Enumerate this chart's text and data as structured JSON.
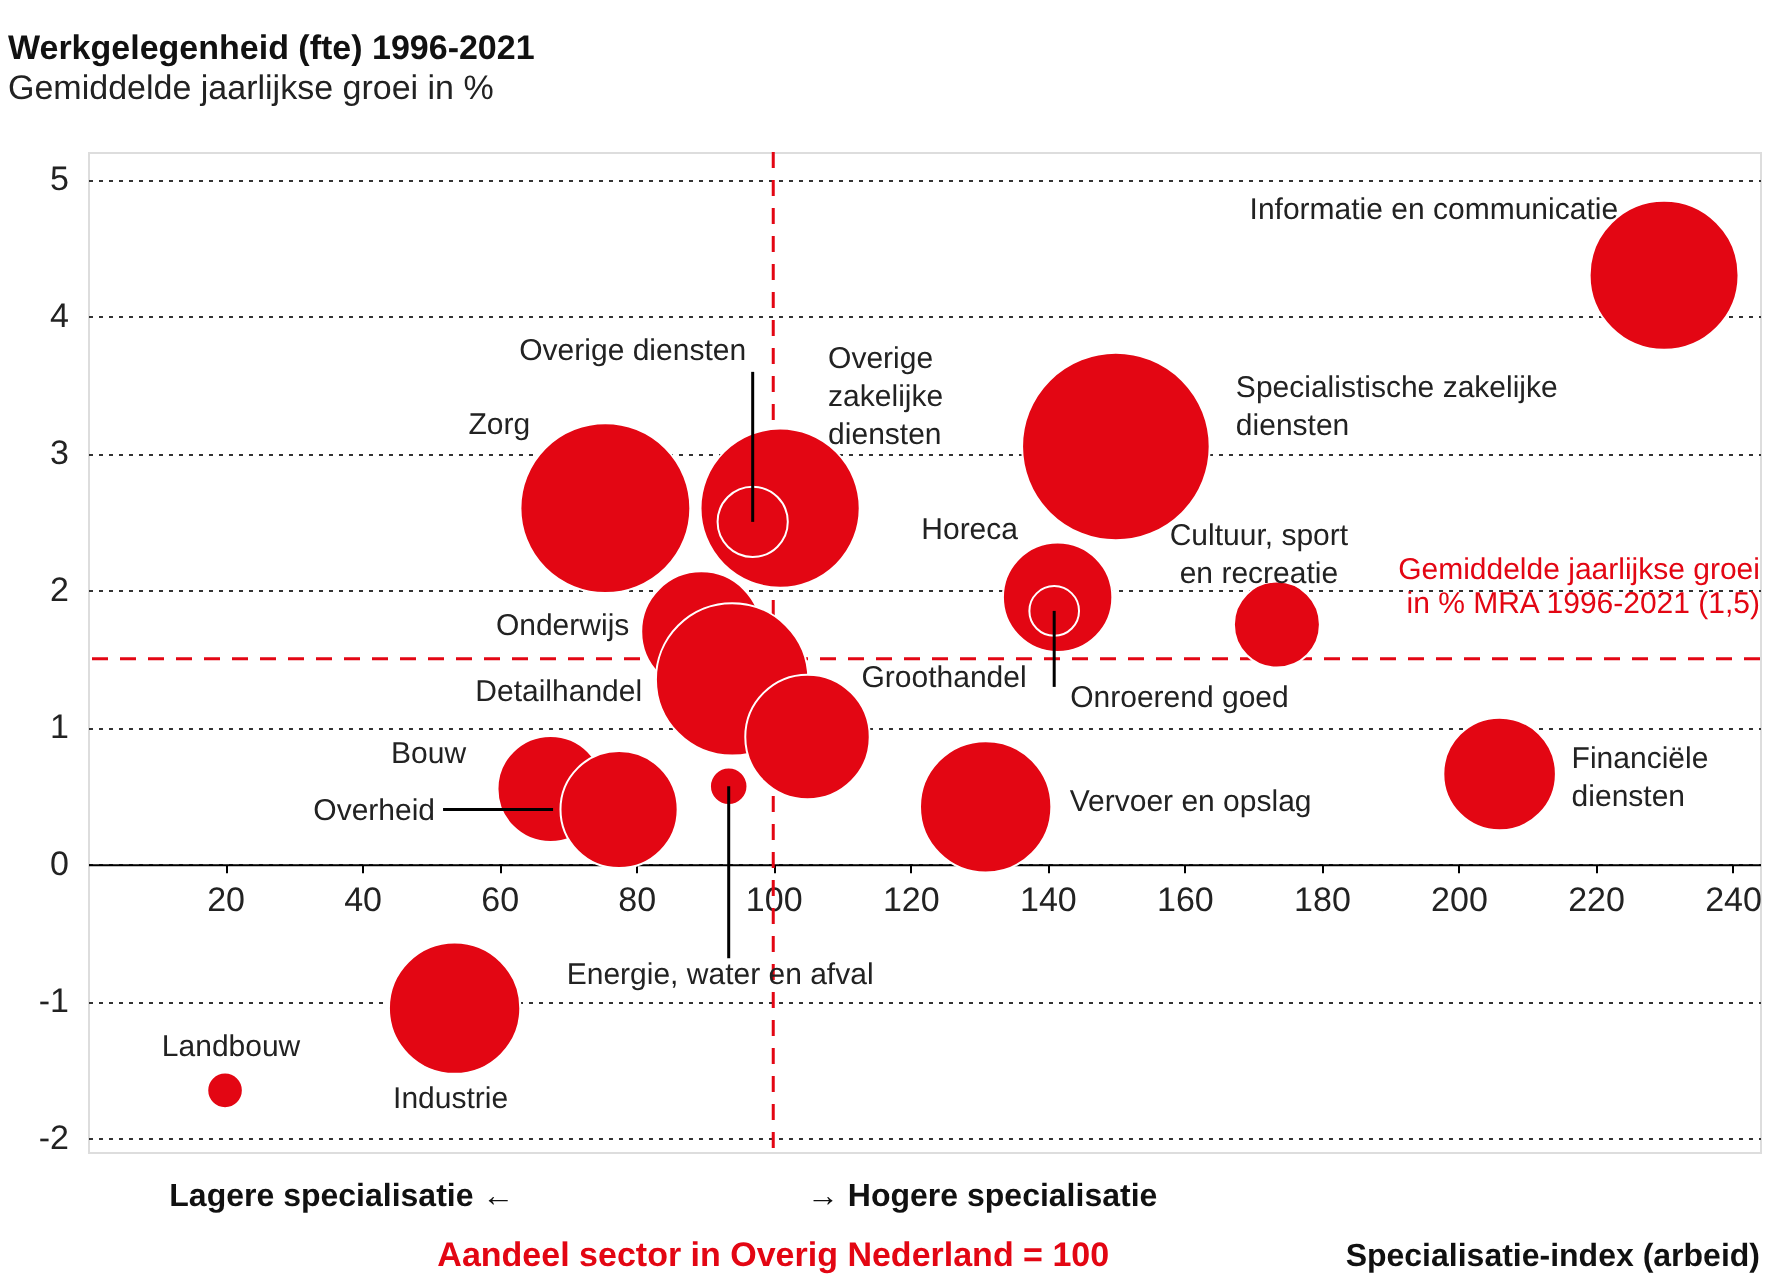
{
  "chart_data": {
    "type": "bubble",
    "title": "Werkgelegenheid (fte) 1996-2021",
    "subtitle": "Gemiddelde jaarlijkse groei in %",
    "xlabel": "Specialisatie-index (arbeid)",
    "xlim": [
      0,
      244
    ],
    "xticks": [
      20,
      40,
      60,
      80,
      100,
      120,
      140,
      160,
      180,
      200,
      220,
      240
    ],
    "ylim": [
      -2.1,
      5.2
    ],
    "yticks": [
      -2,
      -1,
      0,
      1,
      2,
      3,
      4,
      5
    ],
    "grid": "y",
    "series": [
      {
        "name": "Informatie en communicatie",
        "color": "#e30613",
        "x": [
          230
        ],
        "values": [
          4.3
        ],
        "sizes": [
          0.63
        ]
      },
      {
        "name": "Specialistische zakelijke\ndiensten",
        "color": "#e30613",
        "x": [
          150
        ],
        "values": [
          3.05
        ],
        "sizes": [
          1
        ]
      },
      {
        "name": "Overige\nzakelijke\ndiensten",
        "color": "#e30613",
        "x": [
          101
        ],
        "values": [
          2.6
        ],
        "sizes": [
          0.72
        ]
      },
      {
        "name": "Zorg",
        "color": "#e30613",
        "x": [
          75.5
        ],
        "values": [
          2.6
        ],
        "sizes": [
          0.82
        ]
      },
      {
        "name": "Overige diensten",
        "color": "#e30613",
        "x": [
          97
        ],
        "values": [
          2.5
        ],
        "sizes": [
          0.14
        ]
      },
      {
        "name": "Horeca",
        "color": "#e30613",
        "x": [
          141.5
        ],
        "values": [
          1.95
        ],
        "sizes": [
          0.34
        ]
      },
      {
        "name": "Onroerend goed",
        "color": "#e30613",
        "x": [
          141
        ],
        "values": [
          1.85
        ],
        "sizes": [
          0.07
        ]
      },
      {
        "name": "Cultuur, sport\nen recreatie",
        "color": "#e30613",
        "x": [
          173.5
        ],
        "values": [
          1.75
        ],
        "sizes": [
          0.21
        ]
      },
      {
        "name": "Onderwijs",
        "color": "#e30613",
        "x": [
          89.5
        ],
        "values": [
          1.7
        ],
        "sizes": [
          0.41
        ]
      },
      {
        "name": "Detailhandel",
        "color": "#e30613",
        "x": [
          94
        ],
        "values": [
          1.35
        ],
        "sizes": [
          0.66
        ]
      },
      {
        "name": "Groothandel",
        "color": "#e30613",
        "x": [
          105
        ],
        "values": [
          0.93
        ],
        "sizes": [
          0.44
        ]
      },
      {
        "name": "Bouw",
        "color": "#e30613",
        "x": [
          67.5
        ],
        "values": [
          0.55
        ],
        "sizes": [
          0.32
        ]
      },
      {
        "name": "Overheid",
        "color": "#e30613",
        "x": [
          77.5
        ],
        "values": [
          0.4
        ],
        "sizes": [
          0.39
        ]
      },
      {
        "name": "Energie, water en afval",
        "color": "#e30613",
        "x": [
          93.5
        ],
        "values": [
          0.57
        ],
        "sizes": [
          0.04
        ]
      },
      {
        "name": "Vervoer en opslag",
        "color": "#e30613",
        "x": [
          131
        ],
        "values": [
          0.42
        ],
        "sizes": [
          0.49
        ]
      },
      {
        "name": "Financiële\ndiensten",
        "color": "#e30613",
        "x": [
          206
        ],
        "values": [
          0.66
        ],
        "sizes": [
          0.36
        ]
      },
      {
        "name": "Industrie",
        "color": "#e30613",
        "x": [
          53.5
        ],
        "values": [
          -1.05
        ],
        "sizes": [
          0.49
        ]
      },
      {
        "name": "Landbouw",
        "color": "#e30613",
        "x": [
          20
        ],
        "values": [
          -1.65
        ],
        "sizes": [
          0.036
        ]
      }
    ],
    "ref_lines": [
      {
        "axis": "x",
        "value": 100,
        "label": "Aandeel sector in Overig Nederland = 100",
        "color": "#e30613",
        "line_style": "dashed"
      },
      {
        "axis": "y",
        "value": 1.5,
        "label": "Gemiddelde jaarlijkse groei\nin % MRA 1996-2021 (1,5)",
        "color": "#e30613",
        "line_style": "dashed"
      }
    ],
    "annotations": [
      "Lagere specialisatie ←",
      "→ Hogere specialisatie"
    ]
  }
}
